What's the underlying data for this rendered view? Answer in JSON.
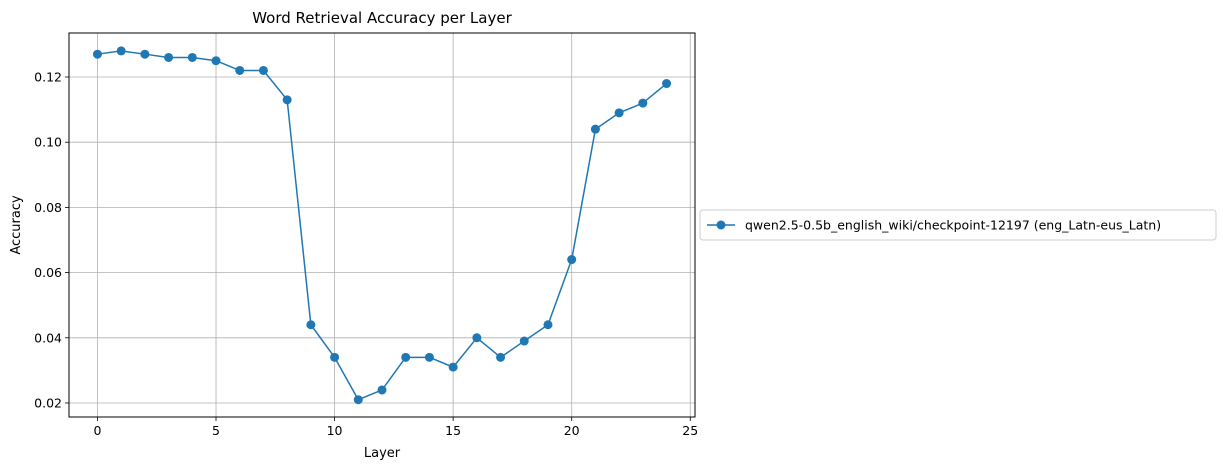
{
  "chart_data": {
    "type": "line",
    "title": "Word Retrieval Accuracy per Layer",
    "xlabel": "Layer",
    "ylabel": "Accuracy",
    "xlim": [
      -1.2,
      25.2
    ],
    "ylim": [
      0.0157,
      0.1335
    ],
    "xticks": [
      0,
      5,
      10,
      15,
      20,
      25
    ],
    "yticks": [
      0.02,
      0.04,
      0.06,
      0.08,
      0.1,
      0.12
    ],
    "ytick_labels": [
      "0.02",
      "0.04",
      "0.06",
      "0.08",
      "0.10",
      "0.12"
    ],
    "grid": true,
    "legend_position": "center-left-outside",
    "series": [
      {
        "name": "qwen2.5-0.5b_english_wiki/checkpoint-12197 (eng_Latn-eus_Latn)",
        "color": "#1f77b4",
        "marker": "circle",
        "x": [
          0,
          1,
          2,
          3,
          4,
          5,
          6,
          7,
          8,
          9,
          10,
          11,
          12,
          13,
          14,
          15,
          16,
          17,
          18,
          19,
          20,
          21,
          22,
          23,
          24
        ],
        "y": [
          0.127,
          0.128,
          0.127,
          0.126,
          0.126,
          0.125,
          0.122,
          0.122,
          0.113,
          0.044,
          0.034,
          0.021,
          0.024,
          0.034,
          0.034,
          0.031,
          0.04,
          0.034,
          0.039,
          0.044,
          0.064,
          0.104,
          0.109,
          0.112,
          0.118
        ]
      }
    ]
  }
}
